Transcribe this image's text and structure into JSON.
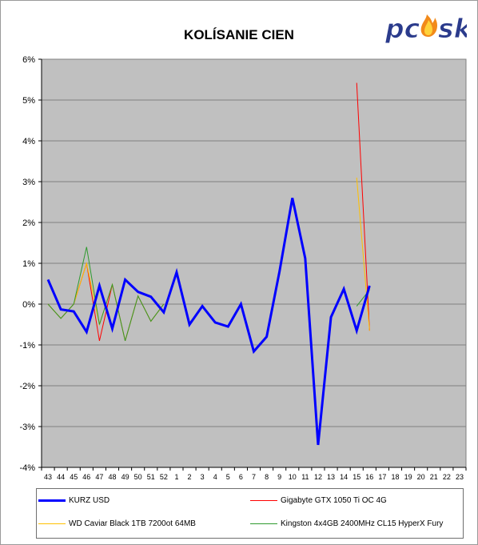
{
  "chart_data": {
    "type": "line",
    "title": "KOLÍSANIE CIEN",
    "xlabel": "",
    "ylabel": "",
    "categories": [
      "43",
      "44",
      "45",
      "46",
      "47",
      "48",
      "49",
      "50",
      "51",
      "52",
      "1",
      "2",
      "3",
      "4",
      "5",
      "6",
      "7",
      "8",
      "9",
      "10",
      "11",
      "12",
      "13",
      "14",
      "15",
      "16",
      "17",
      "18",
      "19",
      "20",
      "21",
      "22",
      "23"
    ],
    "ylim": [
      -4,
      6
    ],
    "yticks": [
      -4,
      -3,
      -2,
      -1,
      0,
      1,
      2,
      3,
      4,
      5,
      6
    ],
    "ytick_labels": [
      "-4%",
      "-3%",
      "-2%",
      "-1%",
      "0%",
      "1%",
      "2%",
      "3%",
      "4%",
      "5%",
      "6%"
    ],
    "grid": "horizontal",
    "legend_position": "bottom",
    "series": [
      {
        "name": "KURZ USD",
        "color": "#0000ff",
        "width": 3,
        "values": [
          0.6,
          -0.13,
          -0.18,
          -0.68,
          0.45,
          -0.6,
          0.6,
          0.3,
          0.18,
          -0.2,
          0.78,
          -0.5,
          -0.05,
          -0.45,
          -0.55,
          0.0,
          -1.16,
          -0.8,
          0.8,
          2.6,
          1.12,
          -3.45,
          -0.32,
          0.37,
          -0.65,
          0.45,
          null,
          null,
          null,
          null,
          null,
          null,
          null
        ]
      },
      {
        "name": "Gigabyte GTX 1050 Ti OC 4G",
        "color": "#ff0000",
        "width": 1,
        "values": [
          0.0,
          -0.35,
          0.0,
          1.0,
          -0.9,
          0.48,
          -0.9,
          0.2,
          -0.42,
          0.0,
          null,
          null,
          null,
          null,
          null,
          null,
          null,
          null,
          null,
          null,
          null,
          null,
          null,
          null,
          5.42,
          -0.65,
          null,
          null,
          null,
          null,
          null,
          null,
          null
        ]
      },
      {
        "name": "WD Caviar Black 1TB 7200ot 64MB",
        "color": "#ffc000",
        "width": 1,
        "values": [
          0.0,
          -0.35,
          0.0,
          1.0,
          -0.5,
          0.48,
          -0.9,
          0.2,
          -0.42,
          0.0,
          null,
          null,
          null,
          null,
          null,
          null,
          null,
          null,
          null,
          null,
          null,
          null,
          null,
          null,
          3.1,
          -0.65,
          null,
          null,
          null,
          null,
          null,
          null,
          null
        ]
      },
      {
        "name": "Kingston 4x4GB 2400MHz CL15 HyperX Fury",
        "color": "#2e9a2e",
        "width": 1,
        "values": [
          0.0,
          -0.35,
          0.0,
          1.4,
          -0.5,
          0.48,
          -0.9,
          0.2,
          -0.42,
          0.0,
          null,
          null,
          null,
          null,
          null,
          null,
          null,
          null,
          null,
          null,
          null,
          null,
          null,
          null,
          -0.05,
          0.35,
          null,
          null,
          null,
          null,
          null,
          null,
          null
        ]
      }
    ]
  },
  "logo_text": "pcosk",
  "colors": {
    "plot_bg": "#c0c0c0",
    "grid": "#808080"
  }
}
